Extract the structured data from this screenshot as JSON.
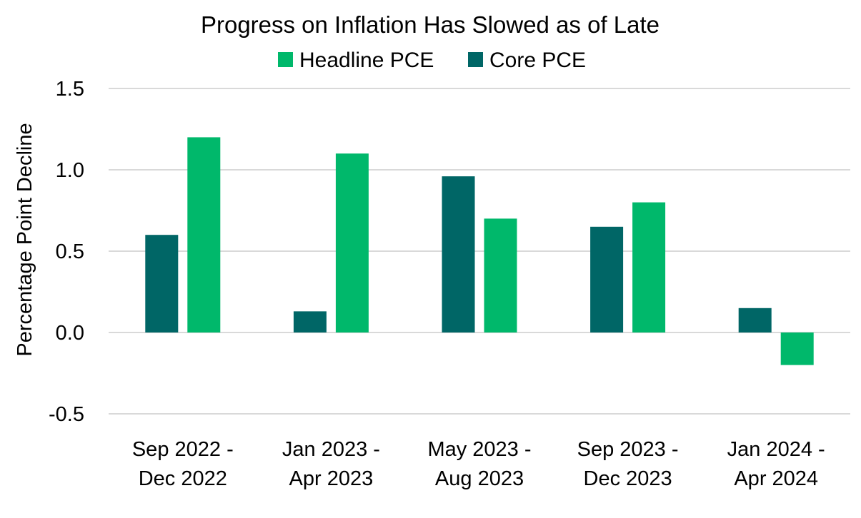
{
  "chart_data": {
    "type": "bar",
    "title": "Progress on Inflation Has Slowed as of Late",
    "ylabel": "Percentage Point Decline",
    "xlabel": "",
    "ylim": [
      -0.5,
      1.5
    ],
    "yticks": [
      1.5,
      1.0,
      0.5,
      0.0,
      -0.5
    ],
    "ytick_labels": [
      "1.5",
      "1.0",
      "0.5",
      "0.0",
      "-0.5"
    ],
    "grid": true,
    "legend_position": "top",
    "legend": [
      {
        "name": "Headline PCE",
        "color": "#00b86b"
      },
      {
        "name": "Core PCE",
        "color": "#006666"
      }
    ],
    "categories": [
      [
        "Sep 2022 -",
        "Dec 2022"
      ],
      [
        "Jan 2023 -",
        "Apr 2023"
      ],
      [
        "May 2023 -",
        "Aug 2023"
      ],
      [
        "Sep 2023 -",
        "Dec 2023"
      ],
      [
        "Jan 2024 -",
        "Apr 2024"
      ]
    ],
    "series": [
      {
        "name": "Core PCE",
        "color": "#006666",
        "values": [
          0.6,
          0.13,
          0.96,
          0.65,
          0.15
        ]
      },
      {
        "name": "Headline PCE",
        "color": "#00b86b",
        "values": [
          1.2,
          1.1,
          0.7,
          0.8,
          -0.2
        ]
      }
    ]
  }
}
